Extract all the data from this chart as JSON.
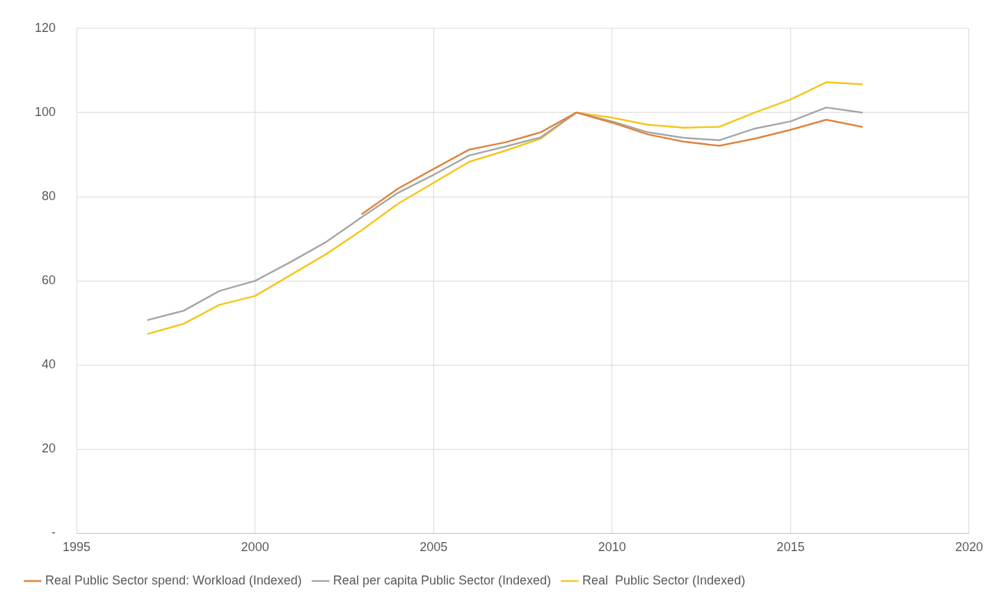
{
  "chart_data": {
    "type": "line",
    "xlim": [
      1995,
      2020
    ],
    "xticks": [
      1995,
      2000,
      2005,
      2010,
      2015,
      2020
    ],
    "ylim": [
      0,
      120
    ],
    "yticks": [
      {
        "value": 0,
        "label": "-"
      },
      20,
      40,
      60,
      80,
      100,
      120
    ],
    "grid": true,
    "legend": "bottom",
    "marker": "none",
    "line_style": "solid",
    "series": [
      {
        "name": "Real Public Sector spend: Workload (Indexed)",
        "color": "#e0823d",
        "x": [
          2003,
          2004,
          2005,
          2006,
          2007,
          2008,
          2009,
          2010,
          2011,
          2012,
          2013,
          2014,
          2015,
          2016,
          2017
        ],
        "values": [
          75.9,
          81.9,
          86.6,
          91.2,
          92.9,
          95.3,
          100,
          97.6,
          94.8,
          93.1,
          92.1,
          93.8,
          95.9,
          98.3,
          96.6
        ]
      },
      {
        "name": "Real per capita Public Sector (Indexed)",
        "color": "#a5a5a5",
        "x": [
          1997,
          1998,
          1999,
          2000,
          2001,
          2002,
          2003,
          2004,
          2005,
          2006,
          2007,
          2008,
          2009,
          2010,
          2011,
          2012,
          2013,
          2014,
          2015,
          2016,
          2017
        ],
        "values": [
          50.7,
          52.9,
          57.6,
          60,
          64.5,
          69.3,
          75.2,
          80.9,
          85.2,
          89.8,
          91.9,
          94.1,
          100,
          97.9,
          95.3,
          94,
          93.4,
          96.2,
          97.9,
          101.2,
          100
        ]
      },
      {
        "name": "Real  Public Sector (Indexed)",
        "color": "#f5c518",
        "x": [
          1997,
          1998,
          1999,
          2000,
          2001,
          2002,
          2003,
          2004,
          2005,
          2006,
          2007,
          2008,
          2009,
          2010,
          2011,
          2012,
          2013,
          2014,
          2015,
          2016,
          2017
        ],
        "values": [
          47.4,
          49.8,
          54.3,
          56.4,
          61.4,
          66.4,
          72.1,
          78.3,
          83.3,
          88.3,
          90.9,
          93.8,
          100,
          98.8,
          97.1,
          96.4,
          96.6,
          100,
          103.1,
          107.2,
          106.7
        ]
      }
    ]
  }
}
